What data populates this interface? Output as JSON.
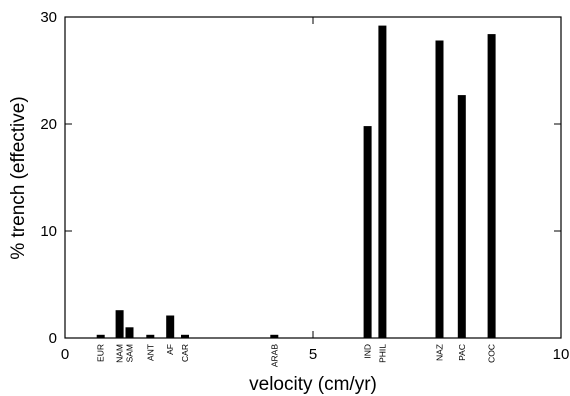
{
  "chart_data": {
    "type": "bar",
    "xlabel": "velocity (cm/yr)",
    "ylabel": "% trench (effective)",
    "xlim": [
      0,
      10
    ],
    "ylim": [
      0,
      30
    ],
    "xticks": [
      0,
      5,
      10
    ],
    "yticks": [
      0,
      10,
      20,
      30
    ],
    "xtick_labels": [
      "0",
      "5",
      "10"
    ],
    "ytick_labels": [
      "0",
      "10",
      "20",
      "30"
    ],
    "grid": false,
    "legend": "none",
    "bar_color": "#000000",
    "bars": [
      {
        "label": "EUR",
        "x": 0.72,
        "value": 0.3
      },
      {
        "label": "NAM",
        "x": 1.1,
        "value": 2.6
      },
      {
        "label": "SAM",
        "x": 1.3,
        "value": 1.0
      },
      {
        "label": "ANT",
        "x": 1.72,
        "value": 0.3
      },
      {
        "label": "AF",
        "x": 2.12,
        "value": 2.1
      },
      {
        "label": "CAR",
        "x": 2.42,
        "value": 0.3
      },
      {
        "label": "ARAB",
        "x": 4.22,
        "value": 0.3
      },
      {
        "label": "IND",
        "x": 6.1,
        "value": 19.8
      },
      {
        "label": "PHIL",
        "x": 6.4,
        "value": 29.2
      },
      {
        "label": "NAZ",
        "x": 7.55,
        "value": 27.8
      },
      {
        "label": "PAC",
        "x": 8.0,
        "value": 22.7
      },
      {
        "label": "COC",
        "x": 8.6,
        "value": 28.4
      }
    ]
  }
}
